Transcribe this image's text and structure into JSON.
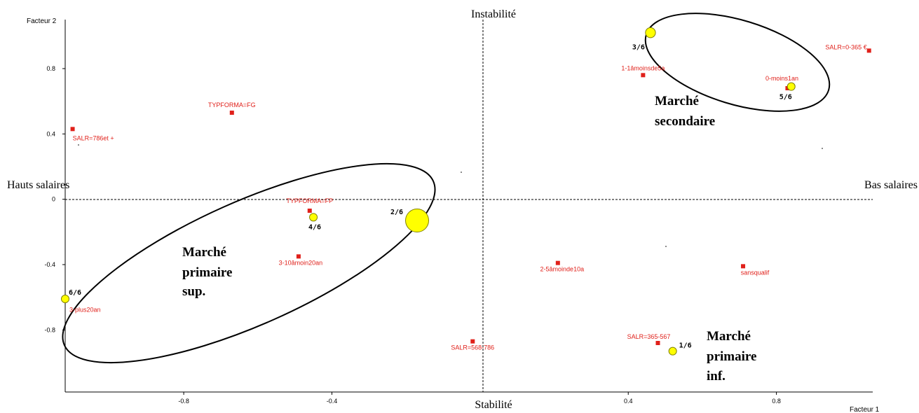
{
  "chart_data": {
    "type": "scatter",
    "xlabel": "Facteur 1",
    "ylabel": "Facteur 2",
    "xlim": [
      -1.12,
      1.06
    ],
    "ylim": [
      -1.18,
      1.1
    ],
    "x_ticks": [
      {
        "value": -0.8,
        "label": "-0.8"
      },
      {
        "value": -0.4,
        "label": "-0.4"
      },
      {
        "value": 0.4,
        "label": "0.4"
      },
      {
        "value": 0.8,
        "label": "0.8"
      }
    ],
    "y_ticks": [
      {
        "value": 0.8,
        "label": "0.8"
      },
      {
        "value": 0.4,
        "label": "0.4"
      },
      {
        "value": 0,
        "label": "0"
      },
      {
        "value": -0.4,
        "label": "-0.4"
      },
      {
        "value": -0.8,
        "label": "-0.8"
      }
    ],
    "poles": {
      "top": "Instabilité",
      "bottom": "Stabilité",
      "left": "Hauts salaires",
      "right": "Bas salaires"
    },
    "categories": [
      {
        "label": "SALR=0-365 €",
        "x": 1.05,
        "y": 0.91
      },
      {
        "label": "1-1âmoinsde5a",
        "x": 0.44,
        "y": 0.76
      },
      {
        "label": "0-moins1an",
        "x": 0.83,
        "y": 0.68
      },
      {
        "label": "TYPFORMA=FG",
        "x": -0.67,
        "y": 0.53
      },
      {
        "label": "SALR=786et +",
        "x": -1.1,
        "y": 0.43
      },
      {
        "label": "TYPFORMA=FP",
        "x": -0.46,
        "y": -0.07
      },
      {
        "label": "3-10âmoin20an",
        "x": -0.49,
        "y": -0.35
      },
      {
        "label": "2-5âmoinde10a",
        "x": 0.21,
        "y": -0.39
      },
      {
        "label": "sansqualif",
        "x": 0.71,
        "y": -0.41
      },
      {
        "label": "3-plus20an",
        "x": -1.12,
        "y": -0.62
      },
      {
        "label": "SALR=568-786",
        "x": -0.02,
        "y": -0.87
      },
      {
        "label": "SALR=365-567",
        "x": 0.48,
        "y": -0.88
      }
    ],
    "classes": [
      {
        "label": "1/6",
        "x": 0.52,
        "y": -0.93,
        "size": 1
      },
      {
        "label": "2/6",
        "x": -0.17,
        "y": -0.13,
        "size": 3
      },
      {
        "label": "3/6",
        "x": 0.46,
        "y": 1.02,
        "size": 1.3
      },
      {
        "label": "4/6",
        "x": -0.45,
        "y": -0.11,
        "size": 1
      },
      {
        "label": "5/6",
        "x": 0.84,
        "y": 0.69,
        "size": 1
      },
      {
        "label": "6/6",
        "x": -1.12,
        "y": -0.61,
        "size": 1
      }
    ],
    "groups": [
      {
        "lines": [
          "Marché",
          "secondaire"
        ]
      },
      {
        "lines": [
          "Marché",
          "primaire",
          "sup."
        ]
      },
      {
        "lines": [
          "Marché",
          "primaire",
          "inf."
        ]
      }
    ],
    "grid": false,
    "colors": {
      "category_marker": "#e0201a",
      "class_fill": "#ffff00",
      "class_stroke": "#808000",
      "axes": "#000000"
    }
  }
}
